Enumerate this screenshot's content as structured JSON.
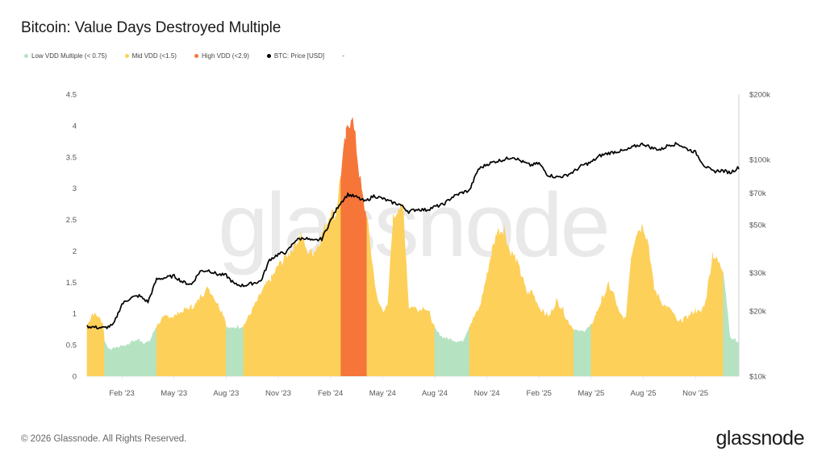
{
  "header": {
    "title": "Bitcoin: Value Days Destroyed Multiple"
  },
  "legend": [
    {
      "label": "Low VDD Multiple (< 0.75)",
      "color": "#b5e3c1",
      "icon": "dot"
    },
    {
      "label": "Mid VDD (<1.5)",
      "color": "#fdd05a",
      "icon": "dot"
    },
    {
      "label": "High VDD (<2.9)",
      "color": "#f6763a",
      "icon": "dot"
    },
    {
      "label": "BTC: Price [USD]",
      "color": "#000000",
      "icon": "dot"
    },
    {
      "label": "-",
      "color": "",
      "icon": "dash"
    }
  ],
  "watermark": "glassnode",
  "footer": {
    "copyright": "© 2026 Glassnode. All Rights Reserved.",
    "logo": "glassnode"
  },
  "colors": {
    "low": "#b5e3c1",
    "mid": "#fdd05a",
    "high": "#f6763a",
    "price": "#000000",
    "axis": "#cccccc",
    "grid": "#f1f1f1"
  },
  "chart_data": {
    "type": "area",
    "title": "Bitcoin: Value Days Destroyed Multiple",
    "xlabel": "",
    "ylabel": "",
    "y2label": "BTC Price [USD]",
    "ylim": [
      0,
      4.5
    ],
    "y2lim": [
      10000,
      200000
    ],
    "y2scale": "log",
    "grid": false,
    "legend_position": "top-left",
    "y_ticks": [
      "0",
      "0.5",
      "1",
      "1.5",
      "2",
      "2.5",
      "3",
      "3.5",
      "4",
      "4.5"
    ],
    "y2_ticks": [
      "$10k",
      "$20k",
      "$30k",
      "$50k",
      "$70k",
      "$100k",
      "$200k"
    ],
    "y2_tick_values": [
      10000,
      20000,
      30000,
      50000,
      70000,
      100000,
      200000
    ],
    "x_ticks": [
      "Feb '23",
      "May '23",
      "Aug '23",
      "Nov '23",
      "Feb '24",
      "May '24",
      "Aug '24",
      "Nov '24",
      "Feb '25",
      "May '25",
      "Aug '25",
      "Nov '25"
    ],
    "x_tick_months": [
      2,
      5,
      8,
      11,
      14,
      17,
      20,
      23,
      26,
      29,
      32,
      35
    ],
    "x_start_month": 0,
    "x_end_month": 37.5,
    "x_note": "month index 0 = Dec 1 2022",
    "series": [
      {
        "name": "VDD Multiple",
        "x_month": [
          0,
          0.3,
          0.6,
          0.9,
          1.0,
          1.3,
          1.6,
          2.0,
          2.3,
          2.6,
          3.0,
          3.3,
          3.6,
          4.0,
          4.3,
          4.6,
          5.0,
          5.3,
          5.6,
          6.0,
          6.3,
          6.6,
          7.0,
          7.3,
          7.6,
          7.9,
          8.0,
          8.3,
          8.6,
          9.0,
          9.3,
          9.6,
          10.0,
          10.3,
          10.6,
          11.0,
          11.3,
          11.6,
          12.0,
          12.3,
          12.6,
          13.0,
          13.3,
          13.6,
          14.0,
          14.3,
          14.6,
          14.9,
          15.2,
          15.5,
          15.8,
          16.1,
          16.4,
          16.7,
          17.0,
          17.3,
          17.6,
          17.9,
          18.2,
          18.5,
          18.8,
          19.1,
          19.4,
          19.7,
          20.0,
          20.3,
          20.6,
          21.0,
          21.3,
          21.6,
          22.0,
          22.3,
          22.6,
          23.0,
          23.3,
          23.6,
          24.0,
          24.3,
          24.6,
          25.0,
          25.3,
          25.6,
          26.0,
          26.3,
          26.6,
          27.0,
          27.3,
          27.6,
          28.0,
          28.3,
          28.6,
          29.0,
          29.3,
          29.6,
          30.0,
          30.3,
          30.6,
          31.0,
          31.3,
          31.6,
          32.0,
          32.3,
          32.6,
          33.0,
          33.3,
          33.6,
          34.0,
          34.3,
          34.6,
          35.0,
          35.3,
          35.6,
          36.0,
          36.3,
          36.6,
          37.0,
          37.3,
          37.5
        ],
        "values": [
          0.8,
          1.0,
          0.95,
          0.85,
          0.55,
          0.42,
          0.45,
          0.48,
          0.5,
          0.55,
          0.58,
          0.52,
          0.55,
          0.8,
          0.9,
          0.95,
          0.95,
          1.0,
          1.05,
          1.1,
          1.15,
          1.3,
          1.4,
          1.25,
          1.1,
          0.95,
          0.78,
          0.75,
          0.78,
          0.8,
          0.95,
          1.1,
          1.3,
          1.45,
          1.55,
          1.75,
          1.85,
          1.95,
          2.1,
          2.25,
          2.0,
          1.95,
          2.1,
          2.3,
          2.6,
          2.55,
          3.2,
          3.8,
          4.2,
          3.6,
          2.9,
          2.5,
          1.8,
          1.2,
          1.05,
          1.1,
          2.5,
          2.7,
          2.6,
          1.1,
          1.1,
          1.05,
          1.1,
          1.0,
          0.75,
          0.65,
          0.6,
          0.58,
          0.55,
          0.55,
          0.8,
          0.95,
          1.1,
          1.6,
          2.0,
          2.3,
          2.35,
          2.0,
          1.9,
          1.6,
          1.3,
          1.35,
          1.1,
          1.0,
          0.95,
          1.2,
          1.1,
          0.9,
          0.75,
          0.7,
          0.72,
          0.8,
          1.0,
          1.2,
          1.45,
          1.3,
          1.0,
          0.9,
          1.9,
          2.3,
          2.4,
          2.1,
          1.4,
          1.2,
          1.1,
          1.05,
          0.85,
          0.9,
          0.95,
          1.05,
          1.0,
          1.2,
          1.95,
          1.8,
          1.7,
          0.6,
          0.58,
          0.5
        ],
        "zones": [
          "mid",
          "mid",
          "mid",
          "mid",
          "low",
          "low",
          "low",
          "low",
          "low",
          "low",
          "low",
          "low",
          "low",
          "mid",
          "mid",
          "mid",
          "mid",
          "mid",
          "mid",
          "mid",
          "mid",
          "mid",
          "mid",
          "mid",
          "mid",
          "mid",
          "low",
          "low",
          "low",
          "mid",
          "mid",
          "mid",
          "mid",
          "mid",
          "mid",
          "mid",
          "mid",
          "mid",
          "mid",
          "mid",
          "mid",
          "mid",
          "mid",
          "mid",
          "mid",
          "mid",
          "high",
          "high",
          "high",
          "high",
          "high",
          "mid",
          "mid",
          "mid",
          "mid",
          "mid",
          "mid",
          "mid",
          "mid",
          "mid",
          "mid",
          "mid",
          "mid",
          "mid",
          "low",
          "low",
          "low",
          "low",
          "low",
          "low",
          "mid",
          "mid",
          "mid",
          "mid",
          "mid",
          "mid",
          "mid",
          "mid",
          "mid",
          "mid",
          "mid",
          "mid",
          "mid",
          "mid",
          "mid",
          "mid",
          "mid",
          "mid",
          "low",
          "low",
          "low",
          "mid",
          "mid",
          "mid",
          "mid",
          "mid",
          "mid",
          "mid",
          "mid",
          "mid",
          "mid",
          "mid",
          "mid",
          "mid",
          "mid",
          "mid",
          "mid",
          "mid",
          "mid",
          "mid",
          "mid",
          "mid",
          "mid",
          "mid",
          "low",
          "low",
          "low"
        ]
      },
      {
        "name": "BTC: Price [USD]",
        "x_month": [
          0,
          0.5,
          1.0,
          1.5,
          2.0,
          2.5,
          3.0,
          3.5,
          4.0,
          4.5,
          5.0,
          5.5,
          6.0,
          6.5,
          7.0,
          7.5,
          8.0,
          8.5,
          9.0,
          9.5,
          10.0,
          10.5,
          11.0,
          11.5,
          12.0,
          12.5,
          13.0,
          13.5,
          14.0,
          14.5,
          15.0,
          15.5,
          16.0,
          16.5,
          17.0,
          17.5,
          18.0,
          18.5,
          19.0,
          19.5,
          20.0,
          20.5,
          21.0,
          21.5,
          22.0,
          22.5,
          23.0,
          23.5,
          24.0,
          24.5,
          25.0,
          25.5,
          26.0,
          26.5,
          27.0,
          27.5,
          28.0,
          28.5,
          29.0,
          29.5,
          30.0,
          30.5,
          31.0,
          31.5,
          32.0,
          32.5,
          33.0,
          33.5,
          34.0,
          34.5,
          35.0,
          35.5,
          36.0,
          36.5,
          37.0,
          37.5
        ],
        "values": [
          17000,
          16800,
          16700,
          17200,
          21500,
          23000,
          23500,
          22000,
          28000,
          28500,
          29000,
          27200,
          26500,
          30500,
          30800,
          29500,
          29200,
          26500,
          26200,
          26800,
          27500,
          34500,
          36500,
          37500,
          42500,
          43500,
          42000,
          43000,
          52000,
          62000,
          69000,
          67000,
          64000,
          68000,
          66000,
          63500,
          62000,
          57500,
          59000,
          58500,
          60500,
          62000,
          67000,
          70000,
          72000,
          90000,
          95000,
          98000,
          100000,
          103000,
          98000,
          94000,
          96000,
          85000,
          83000,
          84000,
          88000,
          94000,
          97000,
          104000,
          107000,
          109000,
          110000,
          115000,
          118000,
          113000,
          111000,
          117000,
          118000,
          112000,
          108000,
          94000,
          88000,
          89000,
          87000,
          92000
        ]
      }
    ]
  }
}
